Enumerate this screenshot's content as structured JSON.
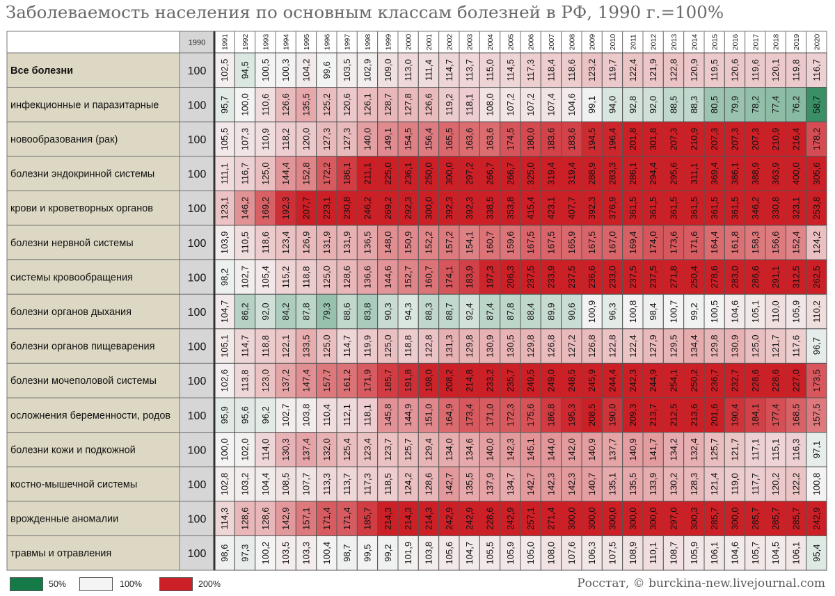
{
  "title": "Заболеваемость населения по основным классам болезней в РФ, 1990 г.=100%",
  "credit": "Росстат, © burckina-new.livejournal.com",
  "legend": [
    {
      "label": "50%",
      "color": "#137a48"
    },
    {
      "label": "100%",
      "color": "#f4f4f4"
    },
    {
      "label": "200%",
      "color": "#cc1f26"
    }
  ],
  "colors": {
    "low": "#137a48",
    "mid": "#f4f4f4",
    "high": "#cc1f26",
    "label_bg": "#ddd8c3",
    "base_bg": "#d6d6d6"
  },
  "chart_data": {
    "type": "heatmap",
    "title": "Заболеваемость населения по основным классам болезней в РФ, 1990 г.=100%",
    "years": [
      "1990",
      "1991",
      "1992",
      "1993",
      "1994",
      "1995",
      "1996",
      "1997",
      "1998",
      "1999",
      "2000",
      "2001",
      "2002",
      "2003",
      "2004",
      "2005",
      "2006",
      "2007",
      "2008",
      "2009",
      "2010",
      "2011",
      "2012",
      "2013",
      "2014",
      "2015",
      "2016",
      "2017",
      "2018",
      "2019",
      "2020"
    ],
    "color_scale": {
      "50%": 50,
      "100%": 100,
      "200%": 200
    },
    "rows": [
      {
        "name": "Все болезни",
        "values": [
          "100",
          "102,5",
          "94,5",
          "100,5",
          "100,3",
          "104,2",
          "99,6",
          "103,5",
          "102,9",
          "109,0",
          "113,0",
          "111,4",
          "114,7",
          "113,7",
          "115,0",
          "114,5",
          "117,3",
          "118,4",
          "118,6",
          "123,2",
          "119,7",
          "122,4",
          "121,9",
          "122,8",
          "120,9",
          "119,5",
          "120,6",
          "119,6",
          "120,1",
          "119,8",
          "116,7"
        ]
      },
      {
        "name": "инфекционные и паразитарные",
        "values": [
          "100",
          "95,7",
          "100,0",
          "110,6",
          "126,6",
          "135,5",
          "125,2",
          "120,6",
          "126,1",
          "128,7",
          "127,8",
          "126,6",
          "119,2",
          "118,1",
          "108,0",
          "107,2",
          "107,2",
          "107,4",
          "104,6",
          "99,1",
          "94,0",
          "92,8",
          "92,0",
          "88,5",
          "88,3",
          "80,5",
          "79,9",
          "78,2",
          "77,4",
          "76,2",
          "58,7"
        ]
      },
      {
        "name": "новообразования (рак)",
        "values": [
          "100",
          "105,5",
          "107,3",
          "110,9",
          "118,2",
          "120,0",
          "127,3",
          "127,3",
          "140,0",
          "149,1",
          "154,5",
          "156,4",
          "165,5",
          "163,6",
          "163,6",
          "174,5",
          "180,0",
          "183,6",
          "183,6",
          "194,5",
          "196,4",
          "201,8",
          "301,8",
          "207,3",
          "210,9",
          "207,3",
          "207,3",
          "207,3",
          "210,9",
          "216,4",
          "178,2"
        ]
      },
      {
        "name": "болезни эндокринной системы",
        "values": [
          "100",
          "111,1",
          "116,7",
          "125,0",
          "144,4",
          "152,8",
          "172,2",
          "186,1",
          "211,1",
          "225,0",
          "236,1",
          "250,0",
          "300,0",
          "297,2",
          "266,7",
          "266,7",
          "325,0",
          "319,4",
          "319,4",
          "288,9",
          "283,3",
          "286,1",
          "294,4",
          "295,6",
          "311,1",
          "369,4",
          "386,1",
          "388,9",
          "363,9",
          "400,0",
          "305,6"
        ]
      },
      {
        "name": "крови и кроветворных органов",
        "values": [
          "100",
          "123,1",
          "146,2",
          "169,2",
          "192,3",
          "207,7",
          "223,1",
          "230,8",
          "246,2",
          "269,2",
          "292,3",
          "300,0",
          "392,3",
          "392,3",
          "338,5",
          "353,8",
          "415,4",
          "423,1",
          "407,7",
          "392,3",
          "376,9",
          "361,5",
          "361,5",
          "361,5",
          "361,5",
          "361,5",
          "361,5",
          "346,2",
          "330,8",
          "323,1",
          "253,8"
        ]
      },
      {
        "name": "болезни нервной системы",
        "values": [
          "100",
          "103,9",
          "110,5",
          "118,6",
          "123,4",
          "126,9",
          "131,9",
          "131,9",
          "136,5",
          "148,0",
          "150,9",
          "152,2",
          "157,2",
          "154,1",
          "160,7",
          "159,6",
          "167,5",
          "167,5",
          "165,9",
          "167,5",
          "167,0",
          "169,4",
          "174,0",
          "173,6",
          "171,6",
          "164,4",
          "161,8",
          "158,3",
          "156,6",
          "152,4",
          "124,2"
        ]
      },
      {
        "name": "системы кровообращения",
        "values": [
          "100",
          "98,2",
          "102,7",
          "105,4",
          "115,2",
          "118,8",
          "125,0",
          "128,6",
          "136,6",
          "144,6",
          "152,7",
          "160,7",
          "174,1",
          "183,9",
          "197,3",
          "206,3",
          "237,5",
          "233,9",
          "237,5",
          "236,6",
          "233,0",
          "237,5",
          "237,5",
          "271,8",
          "250,4",
          "278,6",
          "283,0",
          "286,6",
          "291,1",
          "312,5",
          "262,5"
        ]
      },
      {
        "name": "болезни органов дыхания",
        "values": [
          "100",
          "104,7",
          "86,2",
          "92,0",
          "84,2",
          "87,8",
          "79,3",
          "88,6",
          "83,8",
          "90,3",
          "94,3",
          "88,3",
          "88,7",
          "92,4",
          "87,4",
          "87,8",
          "88,4",
          "89,9",
          "90,6",
          "100,9",
          "96,3",
          "100,8",
          "98,4",
          "100,7",
          "99,2",
          "100,5",
          "104,6",
          "105,1",
          "110,0",
          "105,9",
          "110,2"
        ]
      },
      {
        "name": "болезни органов пищеварения",
        "values": [
          "100",
          "105,1",
          "114,7",
          "118,8",
          "122,1",
          "133,5",
          "125,0",
          "114,7",
          "119,9",
          "125,0",
          "118,8",
          "122,8",
          "131,3",
          "129,8",
          "130,9",
          "130,5",
          "129,8",
          "126,8",
          "127,2",
          "126,8",
          "122,8",
          "122,4",
          "127,9",
          "129,5",
          "134,4",
          "129,8",
          "130,9",
          "125,0",
          "121,7",
          "117,6",
          "96,7"
        ]
      },
      {
        "name": "болезни мочеполовой системы",
        "values": [
          "100",
          "102,6",
          "113,8",
          "123,0",
          "137,2",
          "147,4",
          "157,7",
          "161,2",
          "171,9",
          "185,7",
          "191,8",
          "198,0",
          "208,2",
          "214,8",
          "233,2",
          "235,7",
          "249,5",
          "249,0",
          "248,5",
          "245,9",
          "244,4",
          "242,3",
          "244,9",
          "254,1",
          "250,2",
          "236,7",
          "232,7",
          "228,6",
          "228,6",
          "227,0",
          "173,5"
        ]
      },
      {
        "name": "осложнения беременности, родов",
        "values": [
          "100",
          "95,9",
          "95,6",
          "96,2",
          "102,7",
          "103,8",
          "110,4",
          "112,1",
          "118,1",
          "145,8",
          "144,9",
          "151,0",
          "164,9",
          "173,4",
          "171,0",
          "172,3",
          "175,6",
          "186,8",
          "195,3",
          "208,5",
          "190,0",
          "209,3",
          "213,7",
          "212,5",
          "213,6",
          "201,6",
          "190,4",
          "184,1",
          "177,4",
          "168,5",
          "157,5"
        ]
      },
      {
        "name": "болезни кожи и подкожной",
        "values": [
          "100",
          "100,0",
          "102,0",
          "114,0",
          "130,3",
          "137,4",
          "132,0",
          "125,4",
          "123,4",
          "123,7",
          "125,7",
          "129,4",
          "134,0",
          "134,6",
          "140,0",
          "142,3",
          "145,1",
          "144,0",
          "142,0",
          "140,9",
          "137,7",
          "140,9",
          "141,7",
          "134,2",
          "132,4",
          "125,7",
          "121,7",
          "117,1",
          "115,1",
          "116,3",
          "97,1"
        ]
      },
      {
        "name": "костно-мышечной системы",
        "values": [
          "100",
          "102,8",
          "103,2",
          "104,4",
          "108,5",
          "107,7",
          "113,3",
          "113,7",
          "117,3",
          "118,5",
          "124,2",
          "128,6",
          "142,7",
          "135,5",
          "137,9",
          "134,7",
          "142,7",
          "142,3",
          "142,3",
          "140,7",
          "135,1",
          "135,5",
          "133,9",
          "130,2",
          "128,3",
          "121,4",
          "119,0",
          "117,7",
          "120,2",
          "122,2",
          "100,8"
        ]
      },
      {
        "name": "врожденные аномалии",
        "values": [
          "100",
          "114,3",
          "128,6",
          "128,6",
          "142,9",
          "157,1",
          "171,4",
          "171,4",
          "185,7",
          "214,3",
          "214,3",
          "214,3",
          "242,9",
          "242,9",
          "228,6",
          "242,9",
          "257,1",
          "271,4",
          "300,0",
          "300,0",
          "300,0",
          "300,0",
          "300,0",
          "297,0",
          "300,3",
          "285,7",
          "300,0",
          "285,7",
          "285,7",
          "285,7",
          "242,9"
        ]
      },
      {
        "name": "травмы и отравления",
        "values": [
          "100",
          "98,6",
          "97,3",
          "100,2",
          "103,5",
          "103,3",
          "100,4",
          "98,7",
          "99,5",
          "99,2",
          "101,9",
          "103,8",
          "105,6",
          "104,7",
          "105,5",
          "105,9",
          "105,0",
          "108,0",
          "107,6",
          "106,3",
          "107,5",
          "108,9",
          "110,1",
          "108,7",
          "105,9",
          "106,1",
          "104,6",
          "105,7",
          "104,5",
          "106,1",
          "95,4"
        ]
      }
    ]
  }
}
